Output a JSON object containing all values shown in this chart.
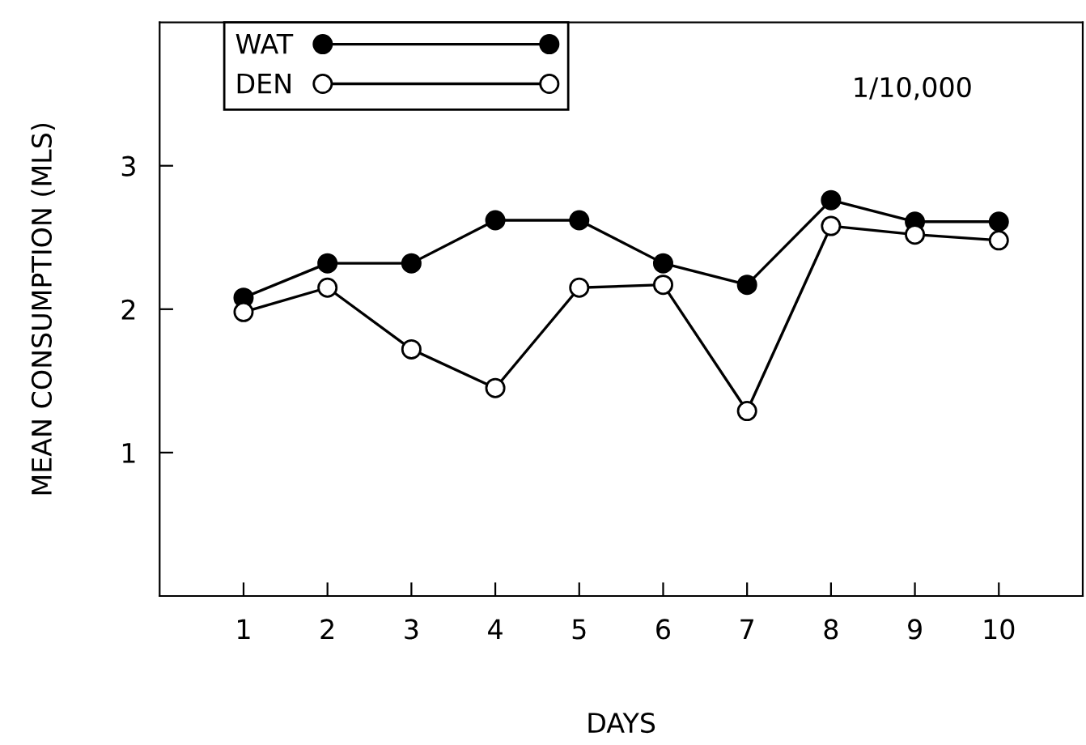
{
  "chart_data": {
    "type": "line",
    "xlabel": "DAYS",
    "ylabel": "MEAN CONSUMPTION (MLS)",
    "x": [
      1,
      2,
      3,
      4,
      5,
      6,
      7,
      8,
      9,
      10
    ],
    "series": [
      {
        "name": "WAT",
        "color": "#000000",
        "values": [
          2.08,
          2.32,
          2.32,
          2.62,
          2.62,
          2.32,
          2.17,
          2.76,
          2.61,
          2.61
        ]
      },
      {
        "name": "DEN",
        "color": "#ffffff",
        "values": [
          1.98,
          2.15,
          1.72,
          1.45,
          2.15,
          2.17,
          1.29,
          2.58,
          2.52,
          2.48
        ]
      }
    ],
    "xlim": [
      0,
      11
    ],
    "ylim": [
      0,
      4
    ],
    "xticks": [
      1,
      2,
      3,
      4,
      5,
      6,
      7,
      8,
      9,
      10
    ],
    "yticks": [
      1,
      2,
      3
    ],
    "marker": "circle",
    "line_style": "solid",
    "grid": false,
    "legend": "top left",
    "annotations": [
      "1/10,000"
    ]
  }
}
